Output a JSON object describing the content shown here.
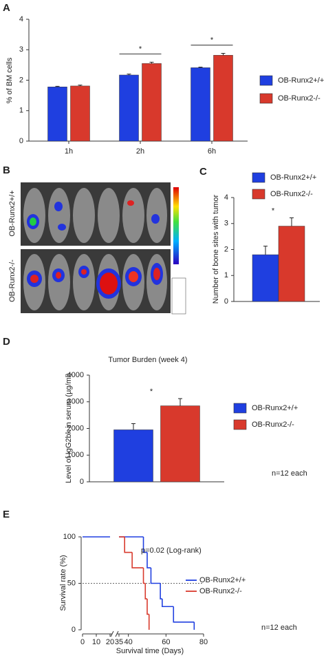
{
  "panels": [
    "A",
    "B",
    "C",
    "D",
    "E"
  ],
  "image_b": {
    "row_labels": [
      "OB-Runx2+/+",
      "OB-Runx2-/-"
    ]
  },
  "chart_data": [
    {
      "type": "bar",
      "ylabel": "% of BM cells",
      "categories": [
        "1h",
        "2h",
        "6h"
      ],
      "series": [
        {
          "name": "OB-Runx2+/+",
          "color": "#1f3fe0",
          "values": [
            1.78,
            2.17,
            2.41
          ],
          "errors": [
            0.02,
            0.03,
            0.02
          ]
        },
        {
          "name": "OB-Runx2-/-",
          "color": "#d8392c",
          "values": [
            1.81,
            2.55,
            2.82
          ],
          "errors": [
            0.03,
            0.04,
            0.06
          ]
        }
      ],
      "significance_labels": [
        null,
        "*",
        "*"
      ],
      "ylim": [
        0,
        4
      ],
      "yticks": [
        0,
        1,
        2,
        3,
        4
      ],
      "legend": "right"
    },
    {
      "type": "bar",
      "ylabel": "Number of bone sites with tumor",
      "series": [
        {
          "name": "OB-Runx2+/+",
          "color": "#1f3fe0",
          "values": [
            1.8
          ],
          "errors": [
            0.33
          ]
        },
        {
          "name": "OB-Runx2-/-",
          "color": "#d8392c",
          "values": [
            2.9
          ],
          "errors": [
            0.32
          ]
        }
      ],
      "significance_label": "*",
      "ylim": [
        0,
        4
      ],
      "yticks": [
        0,
        1,
        2,
        3,
        4
      ],
      "legend": "top"
    },
    {
      "type": "bar",
      "title": "Tumor Burden (week 4)",
      "ylabel": "Level of IgG2bk in serum (µg/ml)",
      "series": [
        {
          "name": "OB-Runx2+/+",
          "color": "#1f3fe0",
          "values": [
            1950
          ],
          "errors": [
            230
          ]
        },
        {
          "name": "OB-Runx2-/-",
          "color": "#d8392c",
          "values": [
            2850
          ],
          "errors": [
            270
          ]
        }
      ],
      "significance_label": "*",
      "note": "n=12 each",
      "ylim": [
        0,
        4000
      ],
      "yticks": [
        0,
        1000,
        2000,
        3000,
        4000
      ],
      "legend": "right"
    },
    {
      "type": "line",
      "ylabel": "Survival rate (%)",
      "xlabel": "Survival time (Days)",
      "annotation": "p=0.02 (Log-rank)",
      "note": "n=12 each",
      "reference_line": 50,
      "series": [
        {
          "name": "OB-Runx2+/+",
          "color": "#1f3fe0",
          "x": [
            0,
            48,
            50,
            52,
            57,
            58,
            64,
            75
          ],
          "values": [
            100,
            83.3,
            66.7,
            50,
            33.3,
            25,
            8.3,
            0
          ]
        },
        {
          "name": "OB-Runx2-/-",
          "color": "#d8392c",
          "x": [
            35,
            38,
            42,
            48,
            49,
            50,
            51
          ],
          "values": [
            100,
            83.3,
            66.7,
            50,
            33.3,
            16.7,
            0
          ]
        }
      ],
      "xlim": [
        0,
        80
      ],
      "xbreak": [
        20,
        35
      ],
      "xticks": [
        0,
        10,
        20,
        35,
        40,
        60,
        80
      ],
      "ylim": [
        0,
        100
      ],
      "yticks": [
        0,
        50,
        100
      ],
      "legend": "right"
    }
  ]
}
